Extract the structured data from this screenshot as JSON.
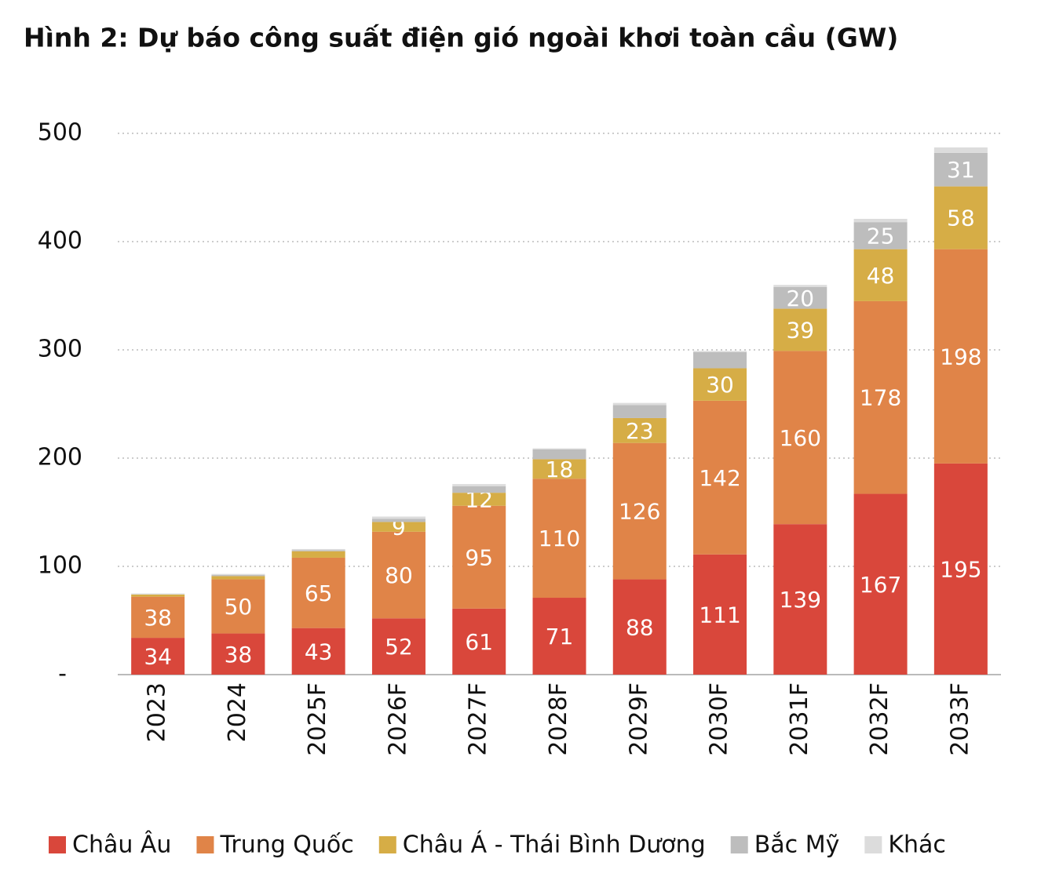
{
  "chart_data": {
    "type": "stacked-bar",
    "title": "Hình 2: Dự báo công suất điện gió ngoài khơi toàn cầu (GW)",
    "categories": [
      "2023",
      "2024",
      "2025F",
      "2026F",
      "2027F",
      "2028F",
      "2029F",
      "2030F",
      "2031F",
      "2032F",
      "2033F"
    ],
    "series": [
      {
        "name": "Châu Âu",
        "color": "#d9473b",
        "values": [
          34,
          38,
          43,
          52,
          61,
          71,
          88,
          111,
          139,
          167,
          195
        ],
        "value_labels": [
          "34",
          "38",
          "43",
          "52",
          "61",
          "71",
          "88",
          "111",
          "139",
          "167",
          "195"
        ]
      },
      {
        "name": "Trung Quốc",
        "color": "#e08448",
        "values": [
          38,
          50,
          65,
          80,
          95,
          110,
          126,
          142,
          160,
          178,
          198
        ],
        "value_labels": [
          "38",
          "50",
          "65",
          "80",
          "95",
          "110",
          "126",
          "142",
          "160",
          "178",
          "198"
        ]
      },
      {
        "name": "Châu Á - Thái Bình Dương",
        "color": "#d6ad46",
        "values": [
          2,
          3,
          6,
          9,
          12,
          18,
          23,
          30,
          39,
          48,
          58
        ],
        "value_labels": [
          null,
          null,
          null,
          "9",
          "12",
          "18",
          "23",
          "30",
          "39",
          "48",
          "58"
        ]
      },
      {
        "name": "Bắc Mỹ",
        "color": "#bdbdbd",
        "values": [
          0,
          1,
          1,
          3,
          6,
          9,
          12,
          15,
          20,
          25,
          31
        ],
        "value_labels": [
          null,
          null,
          null,
          null,
          null,
          null,
          null,
          null,
          "20",
          "25",
          "31"
        ]
      },
      {
        "name": "Khác",
        "color": "#dcdcdc",
        "values": [
          1,
          1,
          1,
          2,
          2,
          1,
          2,
          1,
          2,
          3,
          5
        ]
      }
    ],
    "ylim": [
      0,
      500
    ],
    "yticks": [
      {
        "value": 0,
        "label": "-"
      },
      100,
      200,
      300,
      400,
      500
    ],
    "grid": true
  }
}
